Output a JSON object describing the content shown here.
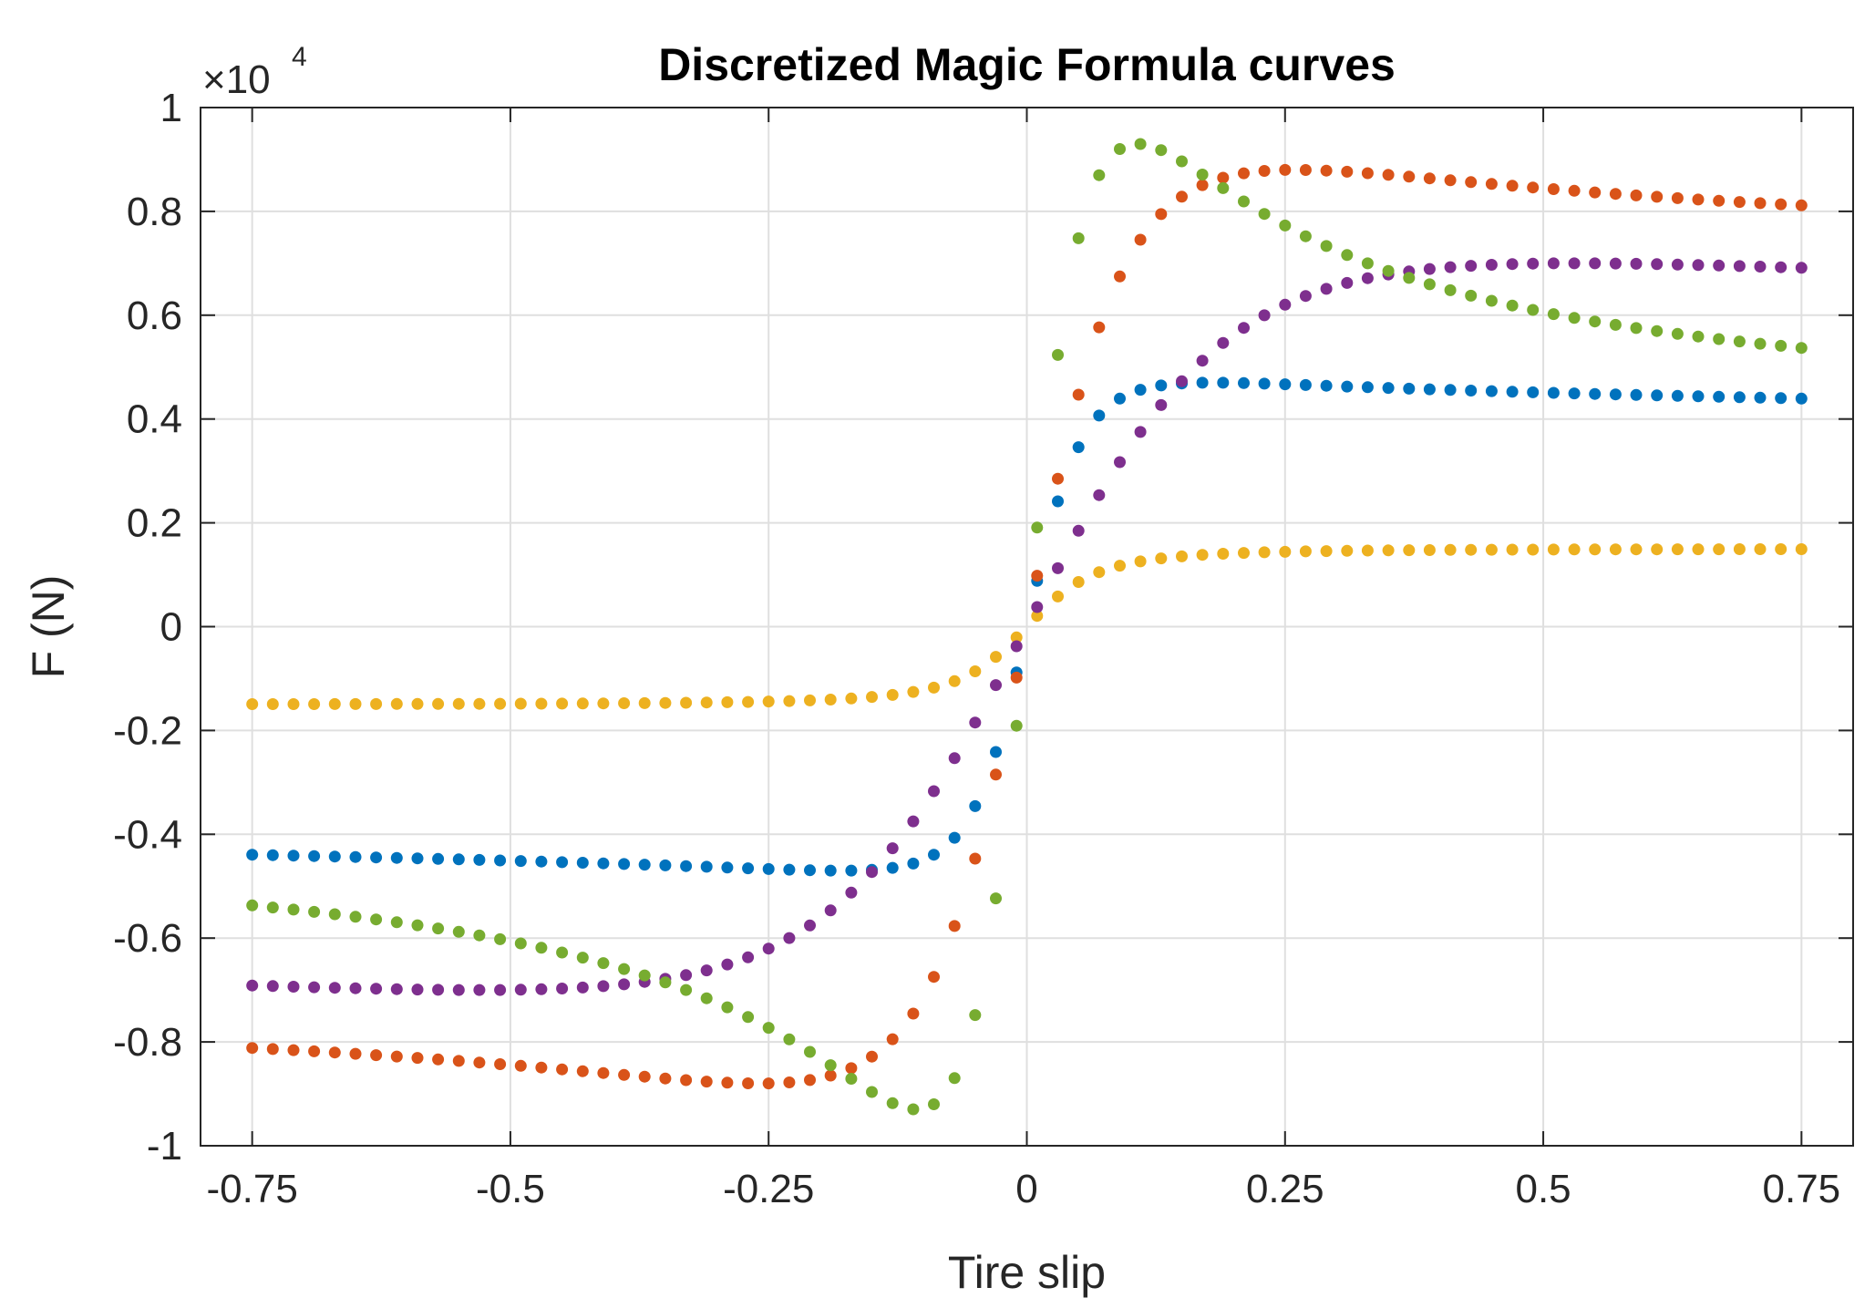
{
  "chart_data": {
    "type": "scatter",
    "title": "Discretized Magic Formula curves",
    "xlabel": "Tire slip",
    "ylabel": "F (N)",
    "y_exponent_label": "×10",
    "y_exponent_power": "4",
    "xlim": [
      -0.8,
      0.8
    ],
    "ylim": [
      -1,
      1
    ],
    "xticks": [
      -0.75,
      -0.5,
      -0.25,
      0,
      0.25,
      0.5,
      0.75
    ],
    "xtick_labels": [
      "-0.75",
      "-0.5",
      "-0.25",
      "0",
      "0.25",
      "0.5",
      "0.75"
    ],
    "yticks": [
      -1,
      -0.8,
      -0.6,
      -0.4,
      -0.2,
      0,
      0.2,
      0.4,
      0.6,
      0.8,
      1
    ],
    "ytick_labels": [
      "-1",
      "-0.8",
      "-0.6",
      "-0.4",
      "-0.2",
      "0",
      "0.2",
      "0.4",
      "0.6",
      "0.8",
      "1"
    ],
    "grid": true,
    "legend": "none",
    "slip_range": [
      -0.75,
      0.75
    ],
    "slip_step": 0.02,
    "series": [
      {
        "name": "blue",
        "color": "#0072BD",
        "D": 0.47,
        "C": 1.9,
        "B": 10,
        "E": 0.97
      },
      {
        "name": "orange",
        "color": "#D95319",
        "D": 0.88,
        "C": 1.4,
        "B": 8,
        "E": 0.0
      },
      {
        "name": "yellow",
        "color": "#EDB120",
        "D": 0.15,
        "C": 1.0,
        "B": 14,
        "E": 0.0
      },
      {
        "name": "purple",
        "color": "#7E2F8E",
        "D": 0.7,
        "C": 1.35,
        "B": 4,
        "E": -0.2
      },
      {
        "name": "green",
        "color": "#77AC30",
        "D": 0.93,
        "C": 1.73,
        "B": 12,
        "E": 0.0
      }
    ]
  }
}
